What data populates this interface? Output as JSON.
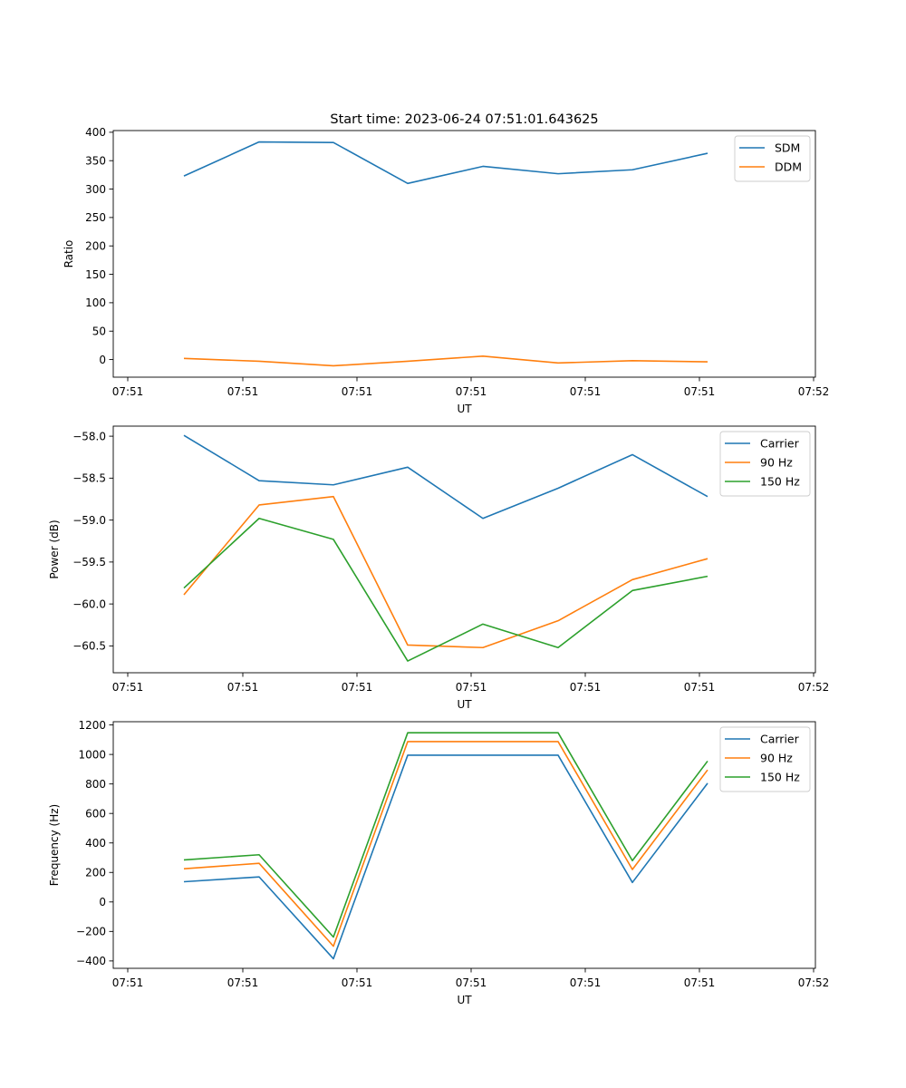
{
  "figure": {
    "title": "Start time: 2023-06-24 07:51:01.643625"
  },
  "chart_data": [
    {
      "type": "line",
      "xlabel": "UT",
      "ylabel": "Ratio",
      "x_tick_labels": [
        "07:51",
        "07:51",
        "07:51",
        "07:51",
        "07:51",
        "07:51",
        "07:52"
      ],
      "y_ticks": [
        0,
        50,
        100,
        150,
        200,
        250,
        300,
        350,
        400
      ],
      "ylim": [
        -31,
        403
      ],
      "legend_position": "top-right",
      "grid": false,
      "series": [
        {
          "name": "SDM",
          "color": "#1f77b4",
          "values": [
            323,
            383,
            382,
            310,
            340,
            327,
            334,
            363
          ]
        },
        {
          "name": "DDM",
          "color": "#ff7f0e",
          "values": [
            2,
            -3,
            -11,
            -3,
            6,
            -6,
            -2,
            -4
          ]
        }
      ]
    },
    {
      "type": "line",
      "xlabel": "UT",
      "ylabel": "Power (dB)",
      "x_tick_labels": [
        "07:51",
        "07:51",
        "07:51",
        "07:51",
        "07:51",
        "07:51",
        "07:52"
      ],
      "y_ticks": [
        -58.0,
        -58.5,
        -59.0,
        -59.5,
        -60.0,
        -60.5
      ],
      "y_tick_labels": [
        "−58.0",
        "−58.5",
        "−59.0",
        "−59.5",
        "−60.0",
        "−60.5"
      ],
      "ylim": [
        -60.82,
        -57.88
      ],
      "legend_position": "top-right",
      "grid": false,
      "series": [
        {
          "name": "Carrier",
          "color": "#1f77b4",
          "values": [
            -57.99,
            -58.53,
            -58.58,
            -58.37,
            -58.98,
            -58.62,
            -58.22,
            -58.72
          ]
        },
        {
          "name": "90 Hz",
          "color": "#ff7f0e",
          "values": [
            -59.89,
            -58.82,
            -58.72,
            -60.49,
            -60.52,
            -60.2,
            -59.71,
            -59.46
          ]
        },
        {
          "name": "150 Hz",
          "color": "#2ca02c",
          "values": [
            -59.81,
            -58.98,
            -59.23,
            -60.68,
            -60.24,
            -60.52,
            -59.84,
            -59.67
          ]
        }
      ]
    },
    {
      "type": "line",
      "xlabel": "UT",
      "ylabel": "Frequency (Hz)",
      "x_tick_labels": [
        "07:51",
        "07:51",
        "07:51",
        "07:51",
        "07:51",
        "07:51",
        "07:52"
      ],
      "y_ticks": [
        -400,
        -200,
        0,
        200,
        400,
        600,
        800,
        1000,
        1200
      ],
      "y_tick_labels": [
        "−400",
        "−200",
        "0",
        "200",
        "400",
        "600",
        "800",
        "1000",
        "1200"
      ],
      "ylim": [
        -450,
        1222
      ],
      "legend_position": "top-right",
      "grid": false,
      "series": [
        {
          "name": "Carrier",
          "color": "#1f77b4",
          "values": [
            137,
            170,
            -385,
            995,
            995,
            995,
            132,
            805
          ]
        },
        {
          "name": "90 Hz",
          "color": "#ff7f0e",
          "values": [
            225,
            262,
            -300,
            1087,
            1087,
            1087,
            220,
            895
          ]
        },
        {
          "name": "150 Hz",
          "color": "#2ca02c",
          "values": [
            285,
            320,
            -238,
            1147,
            1147,
            1147,
            280,
            955
          ]
        }
      ]
    }
  ]
}
